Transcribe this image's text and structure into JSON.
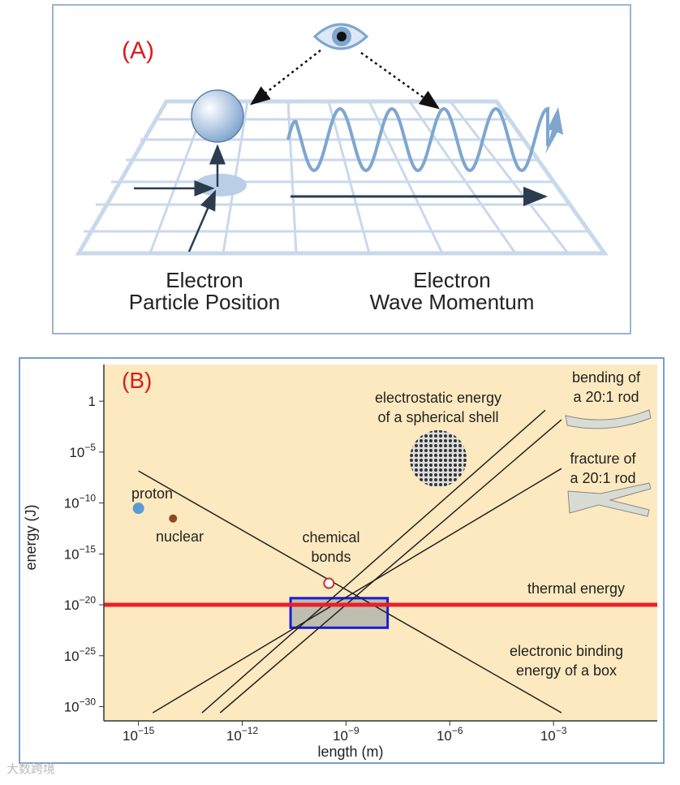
{
  "panel_a": {
    "label": "(A)",
    "captions": [
      {
        "lines": [
          "Electron",
          "Particle Position"
        ]
      },
      {
        "lines": [
          "Electron",
          "Wave Momentum"
        ]
      }
    ]
  },
  "chart_data": {
    "type": "line",
    "label": "(B)",
    "x_label": "length (m)",
    "y_label": "energy (J)",
    "log_x": true,
    "log_y": true,
    "xlim": [
      1e-16,
      1
    ],
    "ylim": [
      4e-32,
      4000
    ],
    "xticks": [
      {
        "value": 1e-15,
        "label": "10",
        "exponent": "−15"
      },
      {
        "value": 1e-12,
        "label": "10",
        "exponent": "−12"
      },
      {
        "value": 1e-09,
        "label": "10",
        "exponent": "−9"
      },
      {
        "value": 1e-06,
        "label": "10",
        "exponent": "−6"
      },
      {
        "value": 0.001,
        "label": "10",
        "exponent": "−3"
      }
    ],
    "yticks": [
      1,
      {
        "value": 1e-05,
        "label": "10",
        "exponent": "−5"
      },
      {
        "value": 1e-10,
        "label": "10",
        "exponent": "−10"
      },
      {
        "value": 1e-15,
        "label": "10",
        "exponent": "−15"
      },
      {
        "value": 1e-20,
        "label": "10",
        "exponent": "−20"
      },
      {
        "value": 1e-25,
        "label": "10",
        "exponent": "−25"
      },
      {
        "value": 1e-30,
        "label": "10",
        "exponent": "−30"
      }
    ],
    "series": [
      {
        "color": "#222222",
        "x": [
          1e-15,
          0.0017
        ],
        "values": [
          1.4e-07,
          2.5e-31
        ]
      },
      {
        "color": "#222222",
        "x": [
          6.9e-14,
          0.00058
        ],
        "values": [
          2.5e-31,
          0.13
        ]
      },
      {
        "color": "#222222",
        "x": [
          2.3e-13,
          0.0017
        ],
        "values": [
          2.5e-31,
          0.015
        ]
      },
      {
        "color": "#222222",
        "x": [
          2.6e-15,
          0.0017
        ],
        "values": [
          2.5e-31,
          2.4e-07
        ]
      },
      {
        "color": "#e8202a",
        "x": [
          1e-16,
          1
        ],
        "values": [
          1e-20,
          1e-20
        ]
      }
    ],
    "points": [
      {
        "label": [
          "proton"
        ],
        "color": "#5b9bd5",
        "x": 1e-15,
        "y": 3e-11
      },
      {
        "label": [
          "nuclear"
        ],
        "color": "#8b4a1c",
        "x": 1e-14,
        "y": 3e-12
      },
      {
        "label": [
          "chemical",
          "bonds"
        ],
        "color": "#c0392b",
        "x": 3.2e-10,
        "y": 1.3e-18
      }
    ],
    "highlight": {
      "color": "#1a1adc",
      "xlim": [
        2.5e-11,
        1.6e-08
      ],
      "ylim": [
        5.6e-23,
        4.5e-20
      ]
    },
    "annotations": [
      {
        "lines": [
          "electrostatic energy",
          "of a spherical shell"
        ]
      },
      {
        "lines": [
          "bending of",
          "a 20:1 rod"
        ]
      },
      {
        "lines": [
          "fracture of",
          "a 20:1 rod"
        ]
      },
      {
        "lines": [
          "thermal energy"
        ]
      },
      {
        "lines": [
          "electronic binding",
          "energy of a box"
        ]
      }
    ]
  },
  "watermark": "大数跨境"
}
